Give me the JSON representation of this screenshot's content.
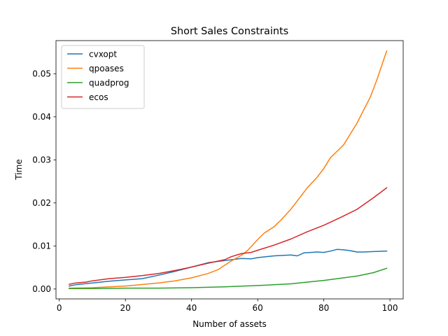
{
  "chart_data": {
    "type": "line",
    "title": "Short Sales Constraints",
    "xlabel": "Number of assets",
    "ylabel": "Time",
    "xlim": [
      -1,
      104
    ],
    "ylim": [
      -0.0023,
      0.0577
    ],
    "xticks": [
      0,
      20,
      40,
      60,
      80,
      100
    ],
    "yticks": [
      0.0,
      0.01,
      0.02,
      0.03,
      0.04,
      0.05
    ],
    "xtick_labels": [
      "0",
      "20",
      "40",
      "60",
      "80",
      "100"
    ],
    "ytick_labels": [
      "0.00",
      "0.01",
      "0.02",
      "0.03",
      "0.04",
      "0.05"
    ],
    "grid": false,
    "legend_position": "top-left",
    "series": [
      {
        "name": "cvxopt",
        "color": "#1f77b4",
        "x": [
          3,
          5,
          10,
          15,
          20,
          25,
          30,
          35,
          40,
          45,
          50,
          55,
          58,
          60,
          65,
          70,
          72,
          74,
          78,
          80,
          82,
          84,
          86,
          88,
          90,
          92,
          95,
          99
        ],
        "y": [
          0.0007,
          0.001,
          0.0014,
          0.0018,
          0.0021,
          0.0024,
          0.0032,
          0.0041,
          0.0051,
          0.0061,
          0.0066,
          0.0071,
          0.007,
          0.0073,
          0.0077,
          0.0079,
          0.0077,
          0.0084,
          0.0086,
          0.0085,
          0.0088,
          0.0092,
          0.0091,
          0.0089,
          0.0086,
          0.0086,
          0.0087,
          0.0088
        ]
      },
      {
        "name": "qpoases",
        "color": "#ff7f0e",
        "x": [
          3,
          10,
          20,
          30,
          35,
          40,
          45,
          48,
          50,
          52,
          55,
          57,
          60,
          62,
          65,
          67,
          70,
          73,
          75,
          78,
          80,
          82,
          84,
          86,
          88,
          90,
          92,
          94,
          96,
          99
        ],
        "y": [
          0.0002,
          0.0003,
          0.0007,
          0.0014,
          0.0019,
          0.0026,
          0.0036,
          0.0045,
          0.0055,
          0.0065,
          0.0078,
          0.009,
          0.0115,
          0.013,
          0.0145,
          0.016,
          0.0185,
          0.0215,
          0.0235,
          0.026,
          0.028,
          0.0305,
          0.032,
          0.0335,
          0.036,
          0.0385,
          0.0415,
          0.0445,
          0.0485,
          0.0553
        ]
      },
      {
        "name": "quadprog",
        "color": "#2ca02c",
        "x": [
          3,
          10,
          20,
          30,
          40,
          50,
          60,
          70,
          75,
          80,
          85,
          90,
          95,
          99
        ],
        "y": [
          0.0001,
          0.0001,
          0.0002,
          0.0002,
          0.0003,
          0.0005,
          0.0008,
          0.0012,
          0.0016,
          0.002,
          0.0025,
          0.003,
          0.0038,
          0.0048
        ]
      },
      {
        "name": "ecos",
        "color": "#d62728",
        "x": [
          3,
          5,
          8,
          10,
          15,
          20,
          25,
          30,
          35,
          40,
          45,
          50,
          52,
          55,
          58,
          60,
          65,
          70,
          75,
          80,
          85,
          90,
          95,
          99
        ],
        "y": [
          0.0011,
          0.0014,
          0.0016,
          0.0019,
          0.0024,
          0.0027,
          0.0031,
          0.0036,
          0.0043,
          0.0051,
          0.006,
          0.0068,
          0.0075,
          0.0082,
          0.0085,
          0.009,
          0.0102,
          0.0116,
          0.0133,
          0.0148,
          0.0166,
          0.0185,
          0.0212,
          0.0235
        ]
      }
    ]
  }
}
